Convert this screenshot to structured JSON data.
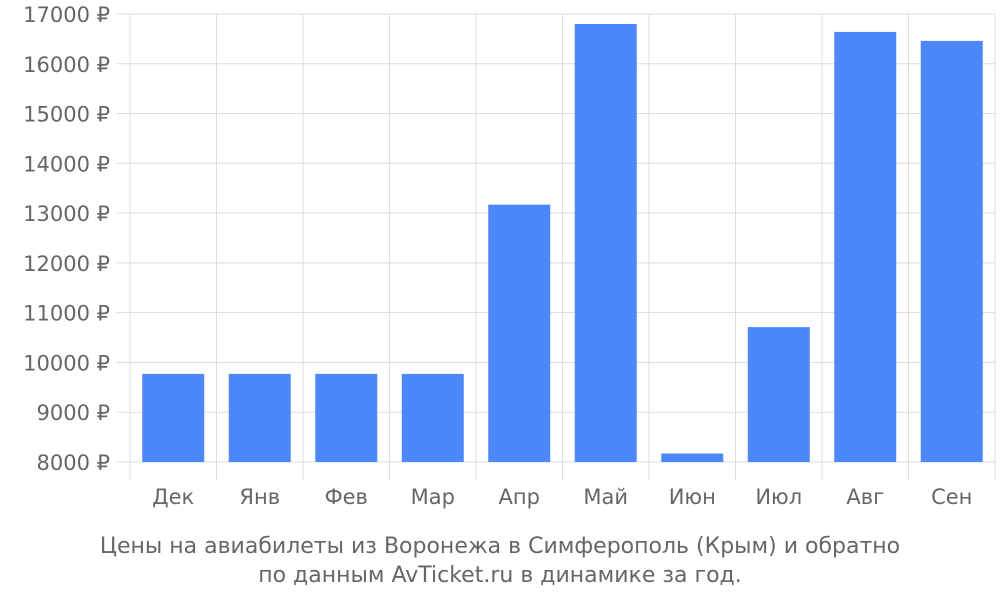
{
  "chart_data": {
    "type": "bar",
    "categories": [
      "Дек",
      "Янв",
      "Фев",
      "Мар",
      "Апр",
      "Май",
      "Июн",
      "Июл",
      "Авг",
      "Сен"
    ],
    "values": [
      9770,
      9770,
      9770,
      9770,
      13170,
      16800,
      8170,
      10710,
      16640,
      16460
    ],
    "ylim": [
      8000,
      17000
    ],
    "yticks": [
      8000,
      9000,
      10000,
      11000,
      12000,
      13000,
      14000,
      15000,
      16000,
      17000
    ],
    "y_unit_suffix": " ₽",
    "grid": true,
    "colors": {
      "bar": "#4d88fa",
      "grid": "#dddddd",
      "text": "#666666"
    }
  },
  "caption": {
    "line1": "Цены на авиабилеты из Воронежа в Симферополь (Крым) и обратно",
    "line2": "по данным AvTicket.ru в динамике за год."
  }
}
